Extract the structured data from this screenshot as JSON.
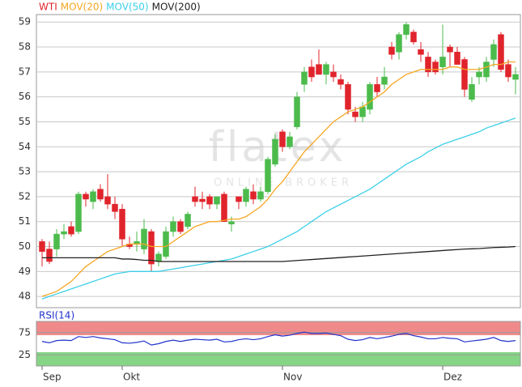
{
  "chart_data": [
    {
      "type": "candlestick",
      "watermark": "flatex",
      "watermark_subtitle": "ONLINE BROKER",
      "ylim": [
        47.55,
        59.3
      ],
      "yticks": [
        48,
        49,
        50,
        51,
        52,
        53,
        54,
        55,
        56,
        57,
        58,
        59
      ],
      "grid": true,
      "up_color": "#4cbb4c",
      "series": [
        {
          "name": "WTI",
          "color": "#e0242c",
          "open": [
            50.2,
            49.9,
            49.9,
            50.5,
            50.8,
            50.6,
            52.1,
            51.8,
            52.3,
            52.0,
            51.7,
            51.5,
            50.1,
            50.1,
            49.9,
            50.6,
            49.4,
            49.6,
            50.6,
            51.0,
            50.8,
            52.0,
            51.9,
            52.0,
            51.7,
            52.1,
            50.9,
            52.0,
            51.8,
            52.2,
            51.9,
            52.2,
            53.3,
            54.6,
            54.0,
            54.8,
            56.5,
            57.2,
            57.3,
            56.9,
            57.0,
            56.7,
            56.5,
            55.4,
            55.2,
            55.5,
            56.5,
            56.5,
            58.0,
            57.8,
            58.5,
            58.6,
            57.9,
            57.6,
            57.4,
            57.2,
            58.0,
            57.8,
            57.5,
            55.9,
            56.8,
            56.8,
            57.5,
            58.5,
            57.3,
            56.7
          ],
          "high": [
            50.3,
            50.2,
            50.7,
            50.9,
            51.0,
            52.2,
            52.2,
            52.3,
            52.5,
            52.9,
            52.0,
            51.7,
            50.4,
            50.6,
            51.1,
            50.7,
            49.8,
            50.8,
            51.2,
            51.1,
            51.4,
            52.4,
            52.2,
            52.1,
            52.0,
            52.2,
            51.2,
            52.0,
            52.4,
            52.5,
            52.4,
            53.6,
            54.5,
            54.7,
            54.6,
            56.2,
            57.2,
            57.5,
            57.9,
            57.4,
            57.3,
            56.9,
            56.6,
            55.6,
            55.8,
            56.6,
            56.8,
            57.2,
            58.2,
            58.6,
            59.0,
            58.7,
            58.2,
            57.8,
            57.5,
            58.9,
            58.1,
            58.0,
            57.6,
            56.8,
            57.2,
            57.6,
            58.3,
            58.6,
            57.5,
            57.2
          ],
          "low": [
            49.2,
            49.3,
            49.6,
            50.3,
            50.4,
            50.5,
            51.6,
            51.5,
            51.8,
            51.5,
            51.1,
            50.0,
            49.9,
            49.8,
            49.7,
            49.0,
            49.2,
            49.5,
            50.4,
            50.5,
            50.7,
            51.6,
            51.5,
            51.5,
            51.5,
            51.0,
            50.6,
            51.5,
            51.6,
            51.7,
            51.8,
            52.1,
            53.2,
            53.8,
            53.9,
            54.7,
            56.2,
            56.6,
            56.9,
            56.5,
            56.6,
            56.3,
            55.3,
            55.0,
            55.0,
            55.3,
            56.0,
            56.3,
            57.5,
            57.5,
            58.3,
            58.1,
            57.4,
            56.8,
            56.9,
            56.9,
            57.2,
            57.3,
            56.0,
            55.8,
            56.5,
            56.6,
            57.2,
            57.0,
            56.6,
            56.1
          ],
          "close": [
            49.8,
            49.4,
            50.5,
            50.6,
            50.5,
            52.1,
            51.9,
            52.2,
            51.9,
            51.7,
            51.4,
            50.3,
            50.0,
            50.2,
            50.7,
            49.3,
            49.7,
            50.6,
            51.0,
            50.6,
            51.3,
            51.8,
            51.8,
            51.7,
            52.0,
            51.0,
            51.0,
            51.8,
            52.3,
            51.9,
            52.2,
            53.5,
            54.3,
            54.0,
            54.4,
            56.0,
            57.0,
            56.8,
            56.9,
            57.3,
            56.8,
            56.5,
            55.5,
            55.2,
            55.6,
            56.5,
            56.2,
            56.8,
            57.7,
            58.5,
            58.9,
            58.2,
            57.7,
            57.0,
            57.0,
            57.6,
            57.8,
            57.3,
            56.3,
            56.5,
            57.0,
            57.4,
            58.1,
            57.1,
            56.8,
            56.9
          ]
        },
        {
          "name": "MOV(20)",
          "color": "#f5a623",
          "values": [
            48.0,
            48.1,
            48.2,
            48.4,
            48.6,
            48.9,
            49.2,
            49.4,
            49.6,
            49.8,
            49.9,
            50.0,
            50.1,
            50.1,
            50.1,
            50.0,
            50.0,
            50.0,
            50.2,
            50.4,
            50.6,
            50.8,
            50.9,
            51.0,
            51.0,
            51.05,
            51.1,
            51.1,
            51.2,
            51.4,
            51.6,
            51.9,
            52.3,
            52.6,
            53.0,
            53.4,
            53.8,
            54.1,
            54.4,
            54.7,
            55.0,
            55.2,
            55.4,
            55.5,
            55.6,
            55.8,
            56.0,
            56.2,
            56.5,
            56.7,
            56.9,
            57.0,
            57.1,
            57.1,
            57.1,
            57.1,
            57.2,
            57.2,
            57.1,
            57.1,
            57.1,
            57.2,
            57.3,
            57.3,
            57.4,
            57.4
          ]
        },
        {
          "name": "MOV(50)",
          "color": "#3ccfe8",
          "values": [
            47.9,
            48.0,
            48.1,
            48.2,
            48.3,
            48.4,
            48.5,
            48.6,
            48.7,
            48.8,
            48.9,
            48.95,
            49.0,
            49.0,
            49.0,
            49.0,
            49.0,
            49.05,
            49.1,
            49.15,
            49.2,
            49.25,
            49.3,
            49.35,
            49.4,
            49.45,
            49.5,
            49.6,
            49.7,
            49.8,
            49.9,
            50.0,
            50.15,
            50.3,
            50.45,
            50.6,
            50.8,
            51.0,
            51.2,
            51.4,
            51.55,
            51.7,
            51.85,
            52.0,
            52.15,
            52.3,
            52.5,
            52.7,
            52.9,
            53.1,
            53.3,
            53.45,
            53.6,
            53.8,
            53.95,
            54.1,
            54.2,
            54.3,
            54.4,
            54.5,
            54.6,
            54.75,
            54.85,
            54.95,
            55.05,
            55.15
          ]
        },
        {
          "name": "MOV(200)",
          "color": "#222222",
          "values": [
            49.55,
            49.55,
            49.55,
            49.55,
            49.55,
            49.55,
            49.55,
            49.55,
            49.55,
            49.55,
            49.55,
            49.5,
            49.5,
            49.48,
            49.45,
            49.45,
            49.4,
            49.4,
            49.4,
            49.4,
            49.4,
            49.4,
            49.4,
            49.4,
            49.4,
            49.4,
            49.4,
            49.4,
            49.4,
            49.4,
            49.4,
            49.4,
            49.4,
            49.4,
            49.42,
            49.44,
            49.46,
            49.48,
            49.5,
            49.52,
            49.54,
            49.56,
            49.58,
            49.6,
            49.62,
            49.64,
            49.66,
            49.68,
            49.7,
            49.72,
            49.74,
            49.76,
            49.78,
            49.8,
            49.82,
            49.84,
            49.86,
            49.88,
            49.9,
            49.91,
            49.92,
            49.94,
            49.96,
            49.97,
            49.98,
            50.0
          ]
        }
      ]
    },
    {
      "type": "line",
      "categories": [
        "Sep",
        null,
        null,
        null,
        null,
        null,
        null,
        null,
        null,
        null,
        null,
        "Okt",
        null,
        null,
        null,
        null,
        null,
        null,
        null,
        null,
        null,
        null,
        null,
        null,
        null,
        null,
        null,
        null,
        null,
        null,
        null,
        null,
        null,
        "Nov",
        null,
        null,
        null,
        null,
        null,
        null,
        null,
        null,
        null,
        null,
        null,
        null,
        null,
        null,
        null,
        null,
        null,
        null,
        null,
        null,
        null,
        "Dez",
        null,
        null,
        null,
        null,
        null,
        null,
        null,
        null,
        null,
        null
      ],
      "ylim": [
        0,
        100
      ],
      "yticks": [
        25,
        75
      ],
      "bands": [
        {
          "from": 70,
          "to": 100,
          "color": "#f08a8a"
        },
        {
          "from": 0,
          "to": 30,
          "color": "#86d486"
        }
      ],
      "series": [
        {
          "name": "RSI(14)",
          "color": "#2233cc",
          "values": [
            55,
            52,
            57,
            58,
            57,
            66,
            64,
            66,
            63,
            61,
            59,
            52,
            51,
            53,
            56,
            47,
            50,
            55,
            58,
            55,
            58,
            60,
            59,
            58,
            60,
            54,
            55,
            59,
            61,
            59,
            61,
            66,
            70,
            67,
            69,
            73,
            76,
            73,
            73,
            74,
            71,
            68,
            60,
            57,
            59,
            64,
            61,
            64,
            67,
            71,
            73,
            68,
            65,
            61,
            61,
            64,
            62,
            61,
            54,
            56,
            58,
            60,
            64,
            57,
            55,
            57
          ]
        }
      ]
    }
  ]
}
